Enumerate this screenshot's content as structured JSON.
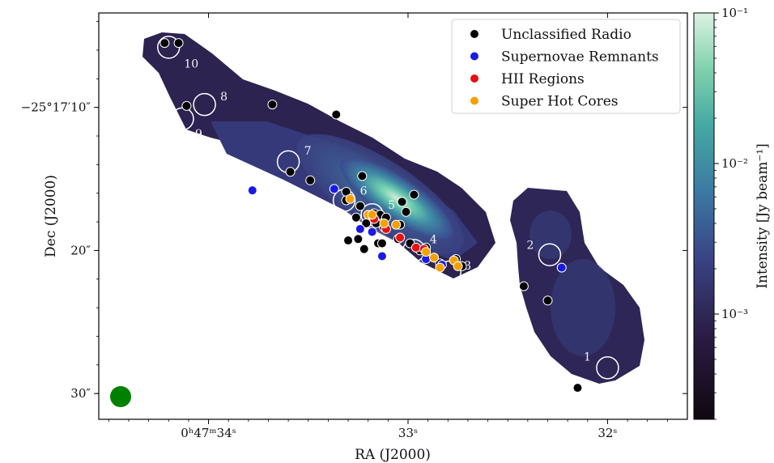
{
  "chart_data": {
    "type": "scatter",
    "background": "radio intensity map (log color scale)",
    "xlabel": "RA (J2000)",
    "ylabel": "Dec (J2000)",
    "xticks": [
      {
        "label": "0ʰ47ᵐ34ˢ",
        "value": 34.0
      },
      {
        "label": "33ˢ",
        "value": 33.0
      },
      {
        "label": "32ˢ",
        "value": 32.0
      }
    ],
    "yticks": [
      {
        "label": "−25°17′10″",
        "value": 10
      },
      {
        "label": "20″",
        "value": 20
      },
      {
        "label": "30″",
        "value": 30
      }
    ],
    "xlim": [
      34.55,
      31.6
    ],
    "ylim": [
      3.4,
      31.8
    ],
    "colorbar": {
      "label": "Intensity [Jy beam⁻¹]",
      "scale": "log",
      "range": [
        0.0002,
        0.1
      ],
      "ticks": [
        {
          "label": "10⁻¹",
          "value": 0.1
        },
        {
          "label": "10⁻²",
          "value": 0.01
        },
        {
          "label": "10⁻³",
          "value": 0.001
        }
      ],
      "colors": [
        "#100810",
        "#2a1b42",
        "#3a4486",
        "#3b76a2",
        "#43a8a4",
        "#7fd1ad",
        "#dcf2e2"
      ]
    },
    "legend": {
      "position": "top-right"
    },
    "series": [
      {
        "name": "Unclassified Radio",
        "color": "#000000",
        "points": [
          [
            34.22,
            5.5
          ],
          [
            34.15,
            5.5
          ],
          [
            34.11,
            9.9
          ],
          [
            33.68,
            9.8
          ],
          [
            33.36,
            10.5
          ],
          [
            33.59,
            14.5
          ],
          [
            33.49,
            15.1
          ],
          [
            33.23,
            14.8
          ],
          [
            33.31,
            15.9
          ],
          [
            33.31,
            16.5
          ],
          [
            33.24,
            16.9
          ],
          [
            33.17,
            17.4
          ],
          [
            33.14,
            17.5
          ],
          [
            33.11,
            17.7
          ],
          [
            33.03,
            16.6
          ],
          [
            33.01,
            17.3
          ],
          [
            32.97,
            16.1
          ],
          [
            33.26,
            17.7
          ],
          [
            33.21,
            18.1
          ],
          [
            33.16,
            18.1
          ],
          [
            33.12,
            18.4
          ],
          [
            33.04,
            18.2
          ],
          [
            33.25,
            19.2
          ],
          [
            33.3,
            19.3
          ],
          [
            33.22,
            19.9
          ],
          [
            33.15,
            19.5
          ],
          [
            33.13,
            19.5
          ],
          [
            33.05,
            19.2
          ],
          [
            32.99,
            19.5
          ],
          [
            32.94,
            20.0
          ],
          [
            32.91,
            19.8
          ],
          [
            32.87,
            20.5
          ],
          [
            32.84,
            20.9
          ],
          [
            32.73,
            21.1
          ],
          [
            32.76,
            20.6
          ],
          [
            32.42,
            22.5
          ],
          [
            32.3,
            23.5
          ],
          [
            32.15,
            29.6
          ]
        ]
      },
      {
        "name": "Supernovae Remnants",
        "color": "#1a1ae6",
        "points": [
          [
            33.78,
            15.8
          ],
          [
            33.37,
            15.7
          ],
          [
            33.24,
            18.5
          ],
          [
            33.18,
            18.7
          ],
          [
            33.13,
            20.4
          ],
          [
            32.91,
            20.6
          ],
          [
            32.83,
            21.0
          ],
          [
            32.23,
            21.2
          ]
        ]
      },
      {
        "name": "HII Regions",
        "color": "#e81010",
        "points": [
          [
            33.17,
            17.8
          ],
          [
            33.11,
            18.5
          ],
          [
            33.04,
            19.1
          ],
          [
            32.96,
            19.8
          ],
          [
            32.92,
            19.9
          ]
        ]
      },
      {
        "name": "Super Hot Cores",
        "color": "#f5a000",
        "points": [
          [
            33.29,
            16.4
          ],
          [
            33.2,
            17.5
          ],
          [
            33.18,
            17.5
          ],
          [
            33.12,
            18.1
          ],
          [
            33.06,
            18.2
          ],
          [
            32.91,
            20.1
          ],
          [
            32.87,
            20.5
          ],
          [
            32.84,
            21.2
          ],
          [
            32.77,
            20.7
          ],
          [
            32.75,
            21.1
          ]
        ]
      }
    ],
    "regions": [
      {
        "label": "1",
        "x": 32.0,
        "y": 28.2
      },
      {
        "label": "2",
        "x": 32.29,
        "y": 20.3
      },
      {
        "label": "3",
        "x": 32.79,
        "y": 21.5
      },
      {
        "label": "4",
        "x": 32.97,
        "y": 20.0
      },
      {
        "label": "5",
        "x": 33.18,
        "y": 17.5
      },
      {
        "label": "6",
        "x": 33.32,
        "y": 16.5
      },
      {
        "label": "7",
        "x": 33.6,
        "y": 13.8
      },
      {
        "label": "8",
        "x": 34.02,
        "y": 9.8
      },
      {
        "label": "9",
        "x": 34.13,
        "y": 10.8
      },
      {
        "label": "10",
        "x": 34.2,
        "y": 5.8
      }
    ],
    "beam": {
      "color": "#008000"
    }
  }
}
